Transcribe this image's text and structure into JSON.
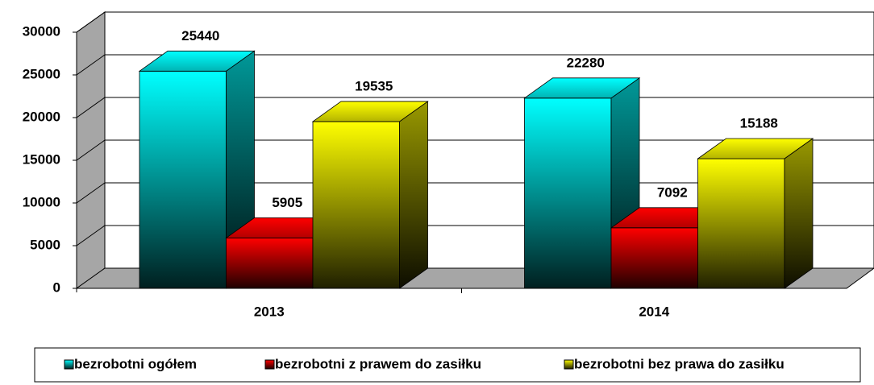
{
  "chart_data": {
    "type": "bar",
    "categories": [
      "2013",
      "2014"
    ],
    "series": [
      {
        "name": "bezrobotni ogółem",
        "color": "#00ffff",
        "values": [
          25440,
          22280
        ]
      },
      {
        "name": "bezrobotni z prawem do zasiłku",
        "color": "#ff0000",
        "values": [
          5905,
          7092
        ]
      },
      {
        "name": "bezrobotni bez prawa do zasiłku",
        "color": "#ffff00",
        "values": [
          19535,
          15188
        ]
      }
    ],
    "ylim": [
      0,
      30000
    ],
    "yticks": [
      0,
      5000,
      10000,
      15000,
      20000,
      25000,
      30000
    ],
    "grid": true,
    "legend": "bottom"
  }
}
